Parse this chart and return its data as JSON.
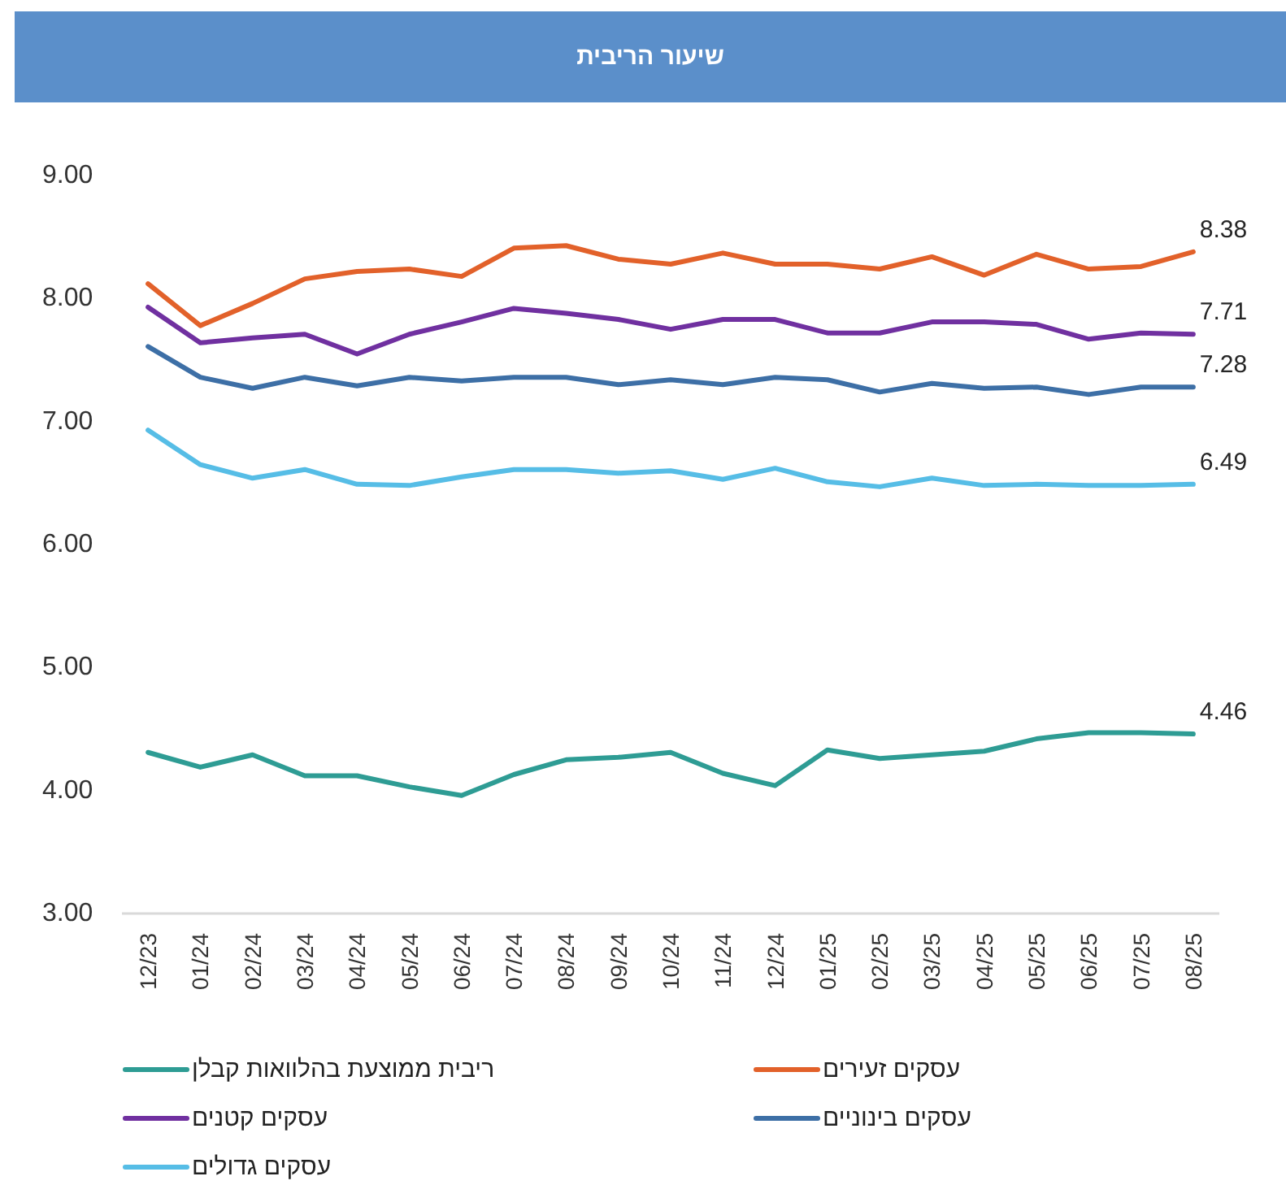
{
  "chart_data": {
    "type": "line",
    "title": "שיעור הריבית",
    "categories": [
      "12/23",
      "01/24",
      "02/24",
      "03/24",
      "04/24",
      "05/24",
      "06/24",
      "07/24",
      "08/24",
      "09/24",
      "10/24",
      "11/24",
      "12/24",
      "01/25",
      "02/25",
      "03/25",
      "04/25",
      "05/25",
      "06/25",
      "07/25",
      "08/25"
    ],
    "ylim": [
      3,
      9
    ],
    "yticks": [
      {
        "value": 3,
        "label": "3.00"
      },
      {
        "value": 4,
        "label": "4.00"
      },
      {
        "value": 5,
        "label": "5.00"
      },
      {
        "value": 6,
        "label": "6.00"
      },
      {
        "value": 7,
        "label": "7.00"
      },
      {
        "value": 8,
        "label": "8.00"
      },
      {
        "value": 9,
        "label": "9.00"
      }
    ],
    "legend": "bottom",
    "series": [
      {
        "name": "ריבית ממוצעת בהלוואות קבלן",
        "color": "#2e9c94",
        "values": [
          4.31,
          4.19,
          4.29,
          4.12,
          4.12,
          4.03,
          3.96,
          4.13,
          4.25,
          4.27,
          4.31,
          4.14,
          4.04,
          4.33,
          4.26,
          4.29,
          4.32,
          4.42,
          4.47,
          4.47,
          4.46
        ],
        "value_labels": [
          null,
          null,
          null,
          null,
          null,
          null,
          null,
          null,
          null,
          null,
          null,
          null,
          null,
          null,
          null,
          null,
          null,
          null,
          null,
          null,
          "4.46"
        ]
      },
      {
        "name": "עסקים זעירים",
        "color": "#e2612a",
        "values": [
          8.12,
          7.78,
          7.96,
          8.16,
          8.22,
          8.24,
          8.18,
          8.41,
          8.43,
          8.32,
          8.28,
          8.37,
          8.28,
          8.28,
          8.24,
          8.34,
          8.19,
          8.36,
          8.24,
          8.26,
          8.38
        ],
        "value_labels": [
          null,
          null,
          null,
          null,
          null,
          null,
          null,
          null,
          null,
          null,
          null,
          null,
          null,
          null,
          null,
          null,
          null,
          null,
          null,
          null,
          "8.38"
        ]
      },
      {
        "name": "עסקים קטנים",
        "color": "#7030a0",
        "values": [
          7.93,
          7.64,
          7.68,
          7.71,
          7.55,
          7.71,
          7.81,
          7.92,
          7.88,
          7.83,
          7.75,
          7.83,
          7.83,
          7.72,
          7.72,
          7.81,
          7.81,
          7.79,
          7.67,
          7.72,
          7.71
        ],
        "value_labels": [
          null,
          null,
          null,
          null,
          null,
          null,
          null,
          null,
          null,
          null,
          null,
          null,
          null,
          null,
          null,
          null,
          null,
          null,
          null,
          null,
          "7.71"
        ]
      },
      {
        "name": "עסקים בינוניים",
        "color": "#3d6fa6",
        "values": [
          7.61,
          7.36,
          7.27,
          7.36,
          7.29,
          7.36,
          7.33,
          7.36,
          7.36,
          7.3,
          7.34,
          7.3,
          7.36,
          7.34,
          7.24,
          7.31,
          7.27,
          7.28,
          7.22,
          7.28,
          7.28
        ],
        "value_labels": [
          null,
          null,
          null,
          null,
          null,
          null,
          null,
          null,
          null,
          null,
          null,
          null,
          null,
          null,
          null,
          null,
          null,
          null,
          null,
          null,
          "7.28"
        ]
      },
      {
        "name": "עסקים גדולים",
        "color": "#56bde6",
        "values": [
          6.93,
          6.65,
          6.54,
          6.61,
          6.49,
          6.48,
          6.55,
          6.61,
          6.61,
          6.58,
          6.6,
          6.53,
          6.62,
          6.51,
          6.47,
          6.54,
          6.48,
          6.49,
          6.48,
          6.48,
          6.49
        ],
        "value_labels": [
          null,
          null,
          null,
          null,
          null,
          null,
          null,
          null,
          null,
          null,
          null,
          null,
          null,
          null,
          null,
          null,
          null,
          null,
          null,
          null,
          "6.49"
        ]
      }
    ]
  }
}
